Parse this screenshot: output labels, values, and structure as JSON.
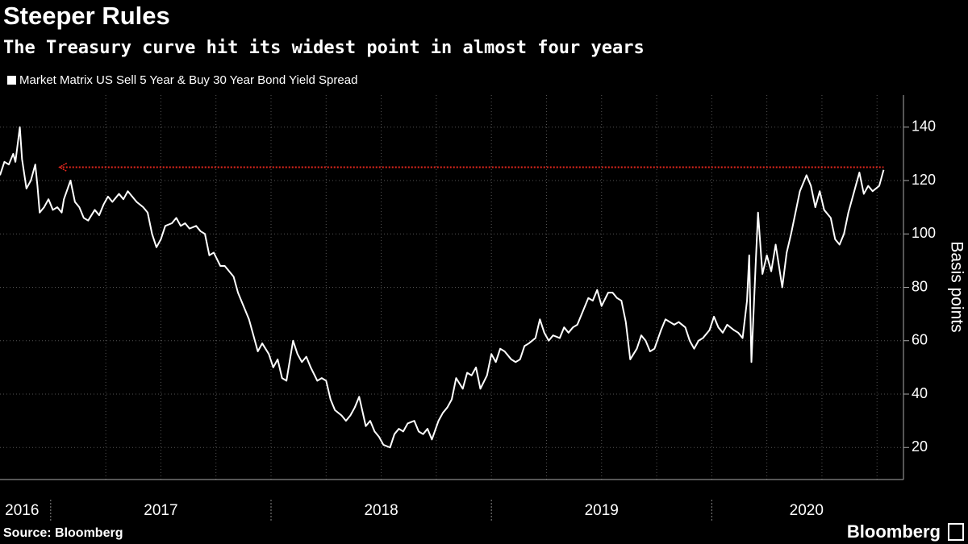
{
  "chart_data": {
    "type": "line",
    "title": "Steeper Rules",
    "subtitle": "The Treasury curve hit its widest point in almost four years",
    "y_axis_label": "Basis points",
    "source": "Source: Bloomberg",
    "brand": "Bloomberg",
    "series": [
      {
        "name": "Market Matrix US Sell 5 Year & Buy 30 Year Bond Yield Spread",
        "color": "#ffffff",
        "x": [
          2016.77,
          2016.79,
          2016.81,
          2016.83,
          2016.84,
          2016.86,
          2016.87,
          2016.89,
          2016.91,
          2016.93,
          2016.94,
          2016.95,
          2016.97,
          2016.99,
          2017.01,
          2017.03,
          2017.05,
          2017.06,
          2017.09,
          2017.11,
          2017.13,
          2017.15,
          2017.17,
          2017.2,
          2017.22,
          2017.24,
          2017.26,
          2017.28,
          2017.31,
          2017.33,
          2017.35,
          2017.37,
          2017.39,
          2017.42,
          2017.44,
          2017.46,
          2017.48,
          2017.5,
          2017.52,
          2017.55,
          2017.57,
          2017.59,
          2017.61,
          2017.63,
          2017.66,
          2017.68,
          2017.7,
          2017.72,
          2017.74,
          2017.77,
          2017.79,
          2017.81,
          2017.83,
          2017.85,
          2017.88,
          2017.9,
          2017.92,
          2017.94,
          2017.96,
          2017.99,
          2018.01,
          2018.03,
          2018.05,
          2018.07,
          2018.1,
          2018.12,
          2018.14,
          2018.16,
          2018.18,
          2018.21,
          2018.23,
          2018.25,
          2018.27,
          2018.29,
          2018.32,
          2018.34,
          2018.36,
          2018.38,
          2018.4,
          2018.43,
          2018.45,
          2018.47,
          2018.49,
          2018.51,
          2018.54,
          2018.56,
          2018.58,
          2018.6,
          2018.62,
          2018.65,
          2018.67,
          2018.69,
          2018.71,
          2018.73,
          2018.76,
          2018.78,
          2018.8,
          2018.82,
          2018.84,
          2018.87,
          2018.89,
          2018.91,
          2018.93,
          2018.95,
          2018.98,
          2019.0,
          2019.02,
          2019.04,
          2019.06,
          2019.09,
          2019.11,
          2019.13,
          2019.15,
          2019.17,
          2019.2,
          2019.22,
          2019.24,
          2019.26,
          2019.28,
          2019.31,
          2019.33,
          2019.35,
          2019.37,
          2019.39,
          2019.42,
          2019.44,
          2019.46,
          2019.48,
          2019.5,
          2019.53,
          2019.55,
          2019.57,
          2019.59,
          2019.61,
          2019.63,
          2019.66,
          2019.68,
          2019.7,
          2019.72,
          2019.74,
          2019.77,
          2019.79,
          2019.81,
          2019.83,
          2019.85,
          2019.88,
          2019.9,
          2019.92,
          2019.94,
          2019.96,
          2019.99,
          2020.01,
          2020.03,
          2020.05,
          2020.07,
          2020.1,
          2020.12,
          2020.14,
          2020.16,
          2020.17,
          2020.18,
          2020.2,
          2020.21,
          2020.23,
          2020.25,
          2020.27,
          2020.29,
          2020.32,
          2020.34,
          2020.36,
          2020.38,
          2020.4,
          2020.43,
          2020.45,
          2020.47,
          2020.49,
          2020.51,
          2020.54,
          2020.56,
          2020.58,
          2020.6,
          2020.62,
          2020.65,
          2020.67,
          2020.69,
          2020.71,
          2020.73,
          2020.76,
          2020.78
        ],
        "values": [
          122,
          127,
          126,
          130,
          127,
          140,
          128,
          117,
          120,
          126,
          118,
          108,
          110,
          113,
          109,
          110,
          108,
          113,
          120,
          112,
          110,
          106,
          105,
          109,
          107,
          111,
          114,
          112,
          115,
          113,
          116,
          114,
          112,
          110,
          108,
          100,
          95,
          98,
          103,
          104,
          106,
          103,
          104,
          102,
          103,
          101,
          100,
          92,
          93,
          88,
          88,
          86,
          84,
          78,
          72,
          68,
          62,
          56,
          59,
          55,
          50,
          53,
          46,
          45,
          60,
          55,
          52,
          54,
          50,
          45,
          46,
          45,
          38,
          34,
          32,
          30,
          32,
          35,
          39,
          28,
          30,
          26,
          24,
          21,
          20,
          25,
          27,
          26,
          29,
          30,
          26,
          25,
          27,
          23,
          30,
          33,
          35,
          38,
          46,
          42,
          48,
          47,
          50,
          42,
          47,
          55,
          52,
          57,
          56,
          53,
          52,
          53,
          58,
          59,
          61,
          68,
          63,
          60,
          62,
          61,
          65,
          63,
          65,
          66,
          72,
          76,
          75,
          79,
          73,
          78,
          78,
          76,
          75,
          67,
          53,
          57,
          62,
          60,
          56,
          57,
          64,
          68,
          67,
          66,
          67,
          65,
          60,
          57,
          60,
          61,
          64,
          69,
          65,
          63,
          66,
          64,
          63,
          61,
          75,
          92,
          52,
          90,
          108,
          85,
          92,
          86,
          96,
          80,
          93,
          100,
          108,
          116,
          122,
          118,
          110,
          116,
          109,
          106,
          98,
          96,
          100,
          108,
          117,
          123,
          115,
          118,
          116,
          118,
          124
        ]
      }
    ],
    "reference": {
      "value": 125,
      "x_start": 2017.04,
      "color": "#e8281e"
    },
    "xlim": [
      2016.77,
      2020.87
    ],
    "xticks": [
      {
        "value": 2016.87,
        "label": "2016"
      },
      {
        "value": 2017.5,
        "label": "2017"
      },
      {
        "value": 2018.5,
        "label": "2018"
      },
      {
        "value": 2019.5,
        "label": "2019"
      },
      {
        "value": 2020.43,
        "label": "2020"
      }
    ],
    "year_boundaries": [
      2017,
      2018,
      2019,
      2020
    ],
    "xgrid": [
      2017.25,
      2017.5,
      2017.75,
      2018,
      2018.25,
      2018.5,
      2018.75,
      2019,
      2019.25,
      2019.5,
      2019.75,
      2020,
      2020.25,
      2020.5,
      2020.75
    ],
    "ylim": [
      8,
      152
    ],
    "yticks": [
      20,
      40,
      60,
      80,
      100,
      120,
      140
    ],
    "grid": true
  }
}
